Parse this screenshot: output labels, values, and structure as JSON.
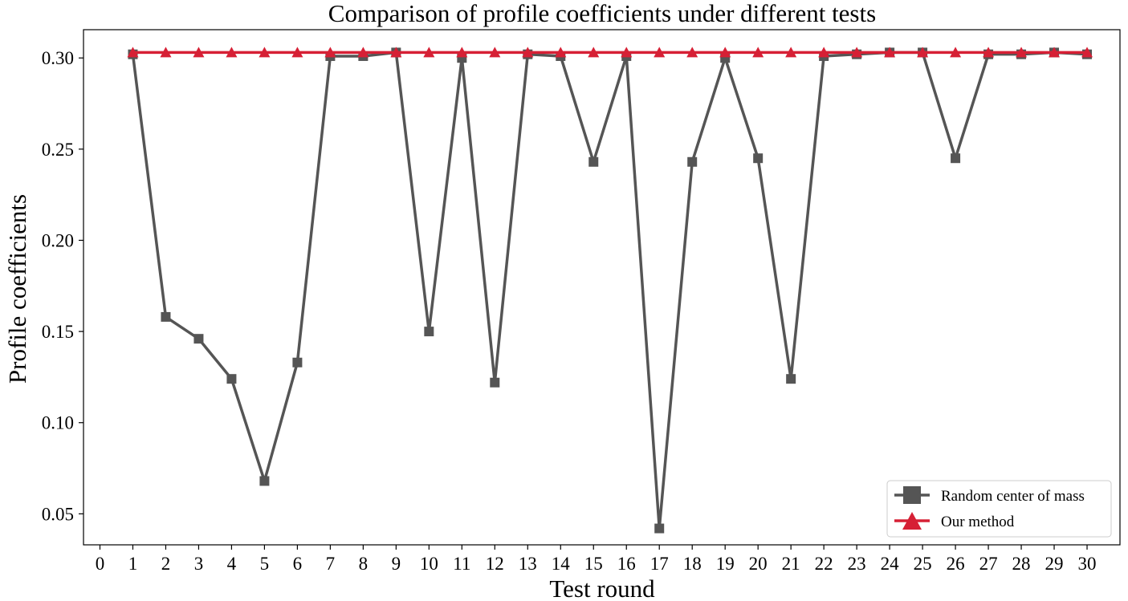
{
  "chart_data": {
    "type": "line",
    "title": "Comparison of profile coefficients under different tests",
    "xlabel": "Test round",
    "ylabel": "Profile coefficients",
    "xlim": [
      -0.5,
      31
    ],
    "ylim": [
      0.033,
      0.3155
    ],
    "xticks": [
      0,
      1,
      2,
      3,
      4,
      5,
      6,
      7,
      8,
      9,
      10,
      11,
      12,
      13,
      14,
      15,
      16,
      17,
      18,
      19,
      20,
      21,
      22,
      23,
      24,
      25,
      26,
      27,
      28,
      29,
      30
    ],
    "yticks": [
      0.05,
      0.1,
      0.15,
      0.2,
      0.25,
      0.3
    ],
    "ytick_labels": [
      "0.05",
      "0.10",
      "0.15",
      "0.20",
      "0.25",
      "0.30"
    ],
    "grid": false,
    "legend_position": "lower-right",
    "x": [
      1,
      2,
      3,
      4,
      5,
      6,
      7,
      8,
      9,
      10,
      11,
      12,
      13,
      14,
      15,
      16,
      17,
      18,
      19,
      20,
      21,
      22,
      23,
      24,
      25,
      26,
      27,
      28,
      29,
      30
    ],
    "series": [
      {
        "name": "Random center of mass",
        "color": "#555555",
        "marker": "square",
        "values": [
          0.302,
          0.158,
          0.146,
          0.124,
          0.068,
          0.133,
          0.301,
          0.301,
          0.303,
          0.15,
          0.3,
          0.122,
          0.302,
          0.301,
          0.243,
          0.301,
          0.042,
          0.243,
          0.3,
          0.245,
          0.124,
          0.301,
          0.302,
          0.303,
          0.303,
          0.245,
          0.302,
          0.302,
          0.303,
          0.302
        ]
      },
      {
        "name": "Our method",
        "color": "#d62035",
        "marker": "triangle",
        "values": [
          0.303,
          0.303,
          0.303,
          0.303,
          0.303,
          0.303,
          0.303,
          0.303,
          0.303,
          0.303,
          0.303,
          0.303,
          0.303,
          0.303,
          0.303,
          0.303,
          0.303,
          0.303,
          0.303,
          0.303,
          0.303,
          0.303,
          0.303,
          0.303,
          0.303,
          0.303,
          0.303,
          0.303,
          0.303,
          0.303
        ]
      }
    ]
  }
}
